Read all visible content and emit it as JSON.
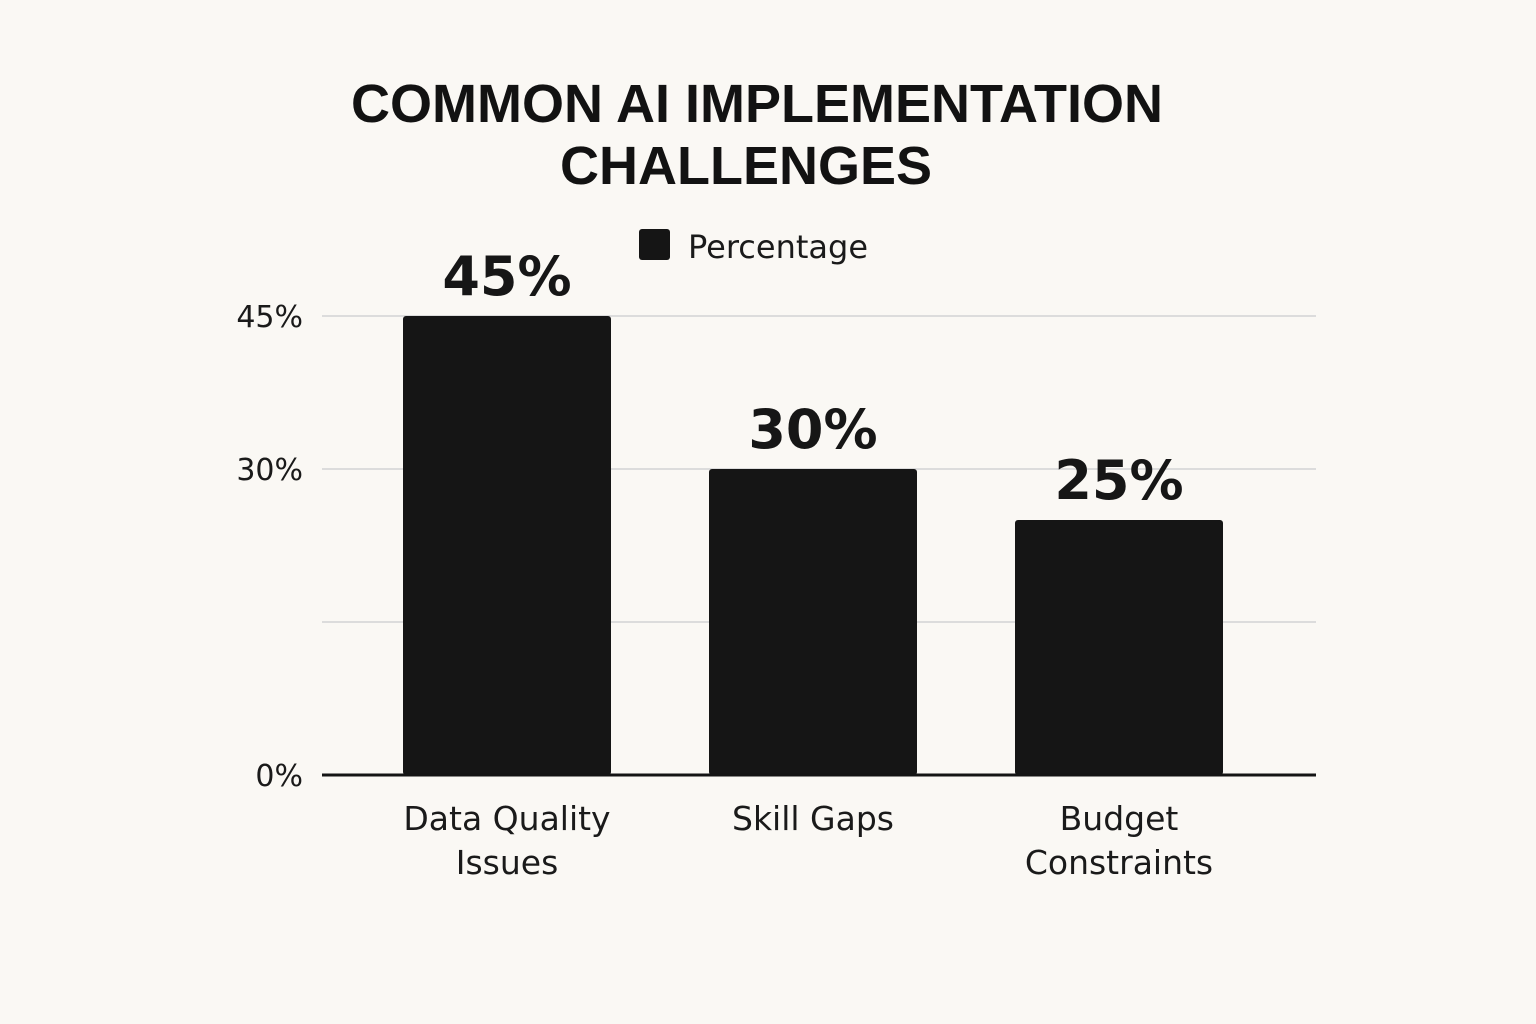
{
  "chart_data": {
    "type": "bar",
    "title_lines": [
      "COMMON AI IMPLEMENTATION",
      "CHALLENGES"
    ],
    "legend": {
      "label": "Percentage",
      "placement": "top-center"
    },
    "categories": [
      [
        "Data Quality",
        "Issues"
      ],
      [
        "Skill Gaps"
      ],
      [
        "Budget",
        "Constraints"
      ]
    ],
    "series": [
      {
        "name": "Percentage",
        "values": [
          45,
          30,
          25
        ],
        "color": "#151515"
      }
    ],
    "data_labels": [
      "45%",
      "30%",
      "25%"
    ],
    "y_ticks": [
      {
        "value": 0,
        "label": "0%"
      },
      {
        "value": 30,
        "label": "30%"
      },
      {
        "value": 45,
        "label": "45%"
      }
    ],
    "gridline_values": [
      15,
      30,
      45
    ],
    "ylim": [
      0,
      55
    ],
    "grid": true,
    "xlabel": "",
    "ylabel": "",
    "colors": {
      "bar": "#151515",
      "grid": "#dcdcdc",
      "axis": "#141414",
      "background": "#faf8f4"
    }
  }
}
